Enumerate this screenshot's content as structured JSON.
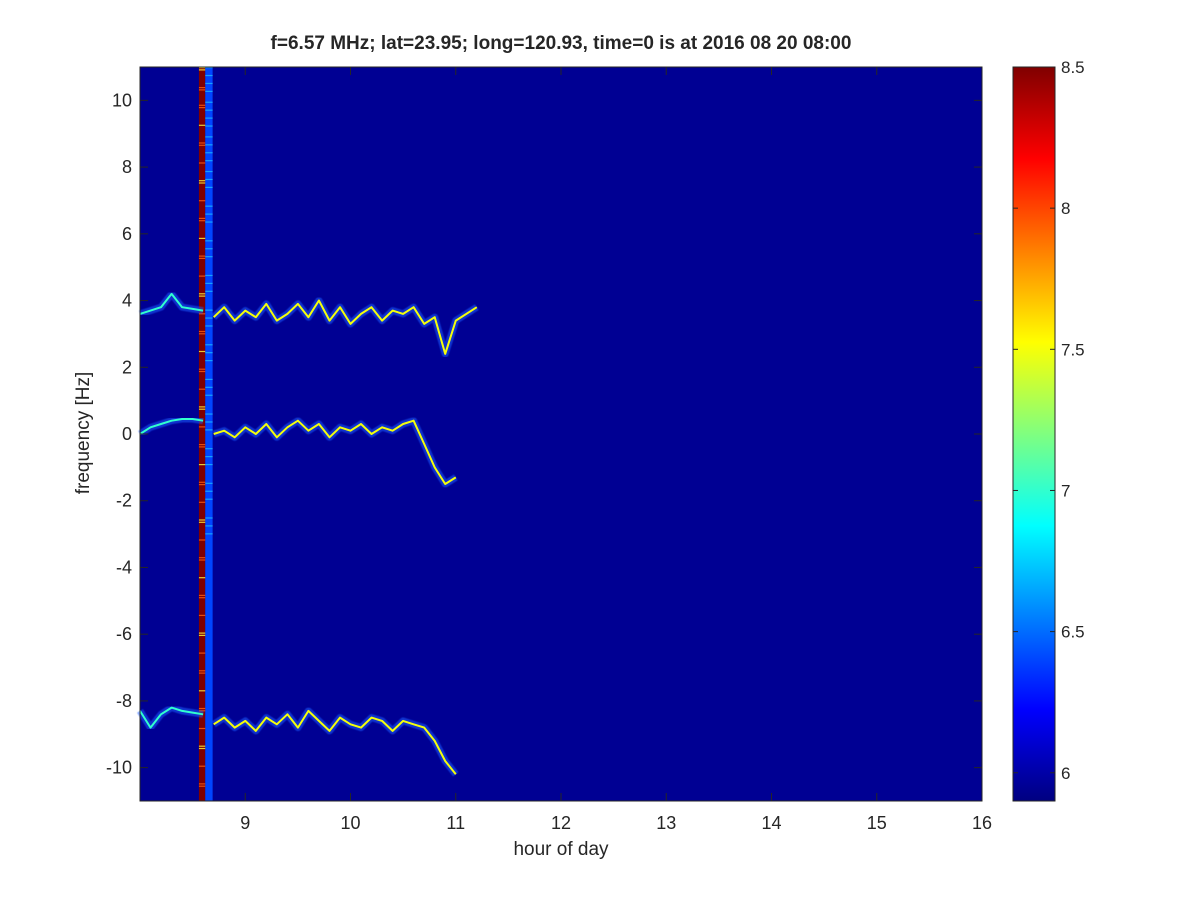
{
  "chart_data": {
    "type": "heatmap",
    "title": "f=6.57 MHz;  lat=23.95; long=120.93, time=0 is at 2016 08 20 08:00",
    "xlabel": "hour of day",
    "ylabel": "frequency [Hz]",
    "xlim": [
      8,
      16
    ],
    "ylim": [
      -11,
      11
    ],
    "xticks": [
      9,
      10,
      11,
      12,
      13,
      14,
      15,
      16
    ],
    "yticks": [
      -10,
      -8,
      -6,
      -4,
      -2,
      0,
      2,
      4,
      6,
      8,
      10
    ],
    "colorbar": {
      "colormap": "jet",
      "clim": [
        5.9,
        8.5
      ],
      "ticks": [
        6,
        6.5,
        7,
        7.5,
        8,
        8.5
      ]
    },
    "background_value": 5.95,
    "vertical_bands": [
      {
        "x_start": 8.56,
        "x_end": 8.62,
        "value": 8.5
      },
      {
        "x_start": 8.62,
        "x_end": 8.69,
        "value": 6.4
      }
    ],
    "traces": [
      {
        "x": [
          8.0,
          8.1,
          8.2,
          8.25,
          8.3,
          8.35,
          8.4,
          8.5,
          8.6
        ],
        "y": [
          3.6,
          3.7,
          3.8,
          4.0,
          4.2,
          4.0,
          3.8,
          3.75,
          3.7
        ],
        "value": 7.0
      },
      {
        "x": [
          8.7,
          8.8,
          8.9,
          9.0,
          9.1,
          9.2,
          9.3,
          9.4,
          9.5,
          9.6,
          9.7,
          9.8,
          9.9,
          10.0,
          10.1,
          10.2,
          10.3,
          10.4,
          10.5,
          10.6,
          10.7,
          10.8,
          10.9,
          11.0,
          11.2
        ],
        "y": [
          3.5,
          3.8,
          3.4,
          3.7,
          3.5,
          3.9,
          3.4,
          3.6,
          3.9,
          3.5,
          4.0,
          3.4,
          3.8,
          3.3,
          3.6,
          3.8,
          3.4,
          3.7,
          3.6,
          3.8,
          3.3,
          3.5,
          2.4,
          3.4,
          3.8
        ],
        "value": 7.5
      },
      {
        "x": [
          8.0,
          8.1,
          8.2,
          8.3,
          8.4,
          8.5,
          8.6
        ],
        "y": [
          0.0,
          0.2,
          0.3,
          0.4,
          0.45,
          0.45,
          0.4
        ],
        "value": 7.0
      },
      {
        "x": [
          8.7,
          8.8,
          8.9,
          9.0,
          9.1,
          9.2,
          9.3,
          9.4,
          9.5,
          9.6,
          9.7,
          9.8,
          9.9,
          10.0,
          10.1,
          10.2,
          10.3,
          10.4,
          10.5,
          10.6,
          10.7,
          10.8,
          10.9,
          11.0
        ],
        "y": [
          0.0,
          0.1,
          -0.1,
          0.2,
          0.0,
          0.3,
          -0.1,
          0.2,
          0.4,
          0.1,
          0.3,
          -0.1,
          0.2,
          0.1,
          0.3,
          0.0,
          0.2,
          0.1,
          0.3,
          0.4,
          -0.3,
          -1.0,
          -1.5,
          -1.3
        ],
        "value": 7.5
      },
      {
        "x": [
          8.0,
          8.1,
          8.2,
          8.3,
          8.4,
          8.5,
          8.6
        ],
        "y": [
          -8.3,
          -8.8,
          -8.4,
          -8.2,
          -8.3,
          -8.35,
          -8.4
        ],
        "value": 7.0
      },
      {
        "x": [
          8.7,
          8.8,
          8.9,
          9.0,
          9.1,
          9.2,
          9.3,
          9.4,
          9.5,
          9.6,
          9.7,
          9.8,
          9.9,
          10.0,
          10.1,
          10.2,
          10.3,
          10.4,
          10.5,
          10.6,
          10.7,
          10.8,
          10.9,
          11.0
        ],
        "y": [
          -8.7,
          -8.5,
          -8.8,
          -8.6,
          -8.9,
          -8.5,
          -8.7,
          -8.4,
          -8.8,
          -8.3,
          -8.6,
          -8.9,
          -8.5,
          -8.7,
          -8.8,
          -8.5,
          -8.6,
          -8.9,
          -8.6,
          -8.7,
          -8.8,
          -9.2,
          -9.8,
          -10.2
        ],
        "value": 7.5
      }
    ],
    "grid": false,
    "legend": "none"
  }
}
